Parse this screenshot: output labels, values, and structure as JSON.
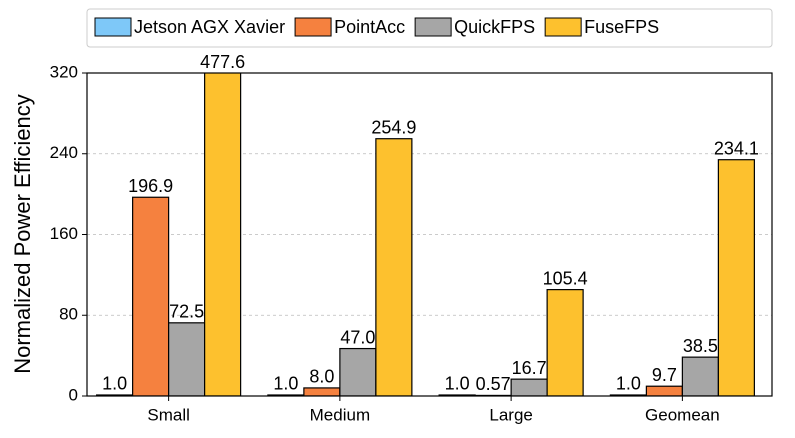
{
  "chart_data": {
    "type": "bar",
    "y_label": "Normalized Power Efficiency",
    "categories": [
      "Small",
      "Medium",
      "Large",
      "Geomean"
    ],
    "series": [
      {
        "name": "Jetson AGX Xavier",
        "color": "#7ec8f8",
        "values": [
          1.0,
          1.0,
          1.0,
          1.0
        ],
        "value_labels": [
          "1.0",
          "1.0",
          "1.0",
          "1.0"
        ]
      },
      {
        "name": "PointAcc",
        "color": "#f5813f",
        "values": [
          196.9,
          8.0,
          0.57,
          9.7
        ],
        "value_labels": [
          "196.9",
          "8.0",
          "0.57",
          "9.7"
        ]
      },
      {
        "name": "QuickFPS",
        "color": "#a6a6a6",
        "values": [
          72.5,
          47.0,
          16.7,
          38.5
        ],
        "value_labels": [
          "72.5",
          "47.0",
          "16.7",
          "38.5"
        ]
      },
      {
        "name": "FuseFPS",
        "color": "#fdc12e",
        "values": [
          477.6,
          254.9,
          105.4,
          234.1
        ],
        "value_labels": [
          "477.6",
          "254.9",
          "105.4",
          "234.1"
        ]
      }
    ],
    "ylim": [
      0,
      320
    ],
    "yticks": [
      0,
      80,
      160,
      240,
      320
    ],
    "grid": true,
    "legend": "top"
  }
}
